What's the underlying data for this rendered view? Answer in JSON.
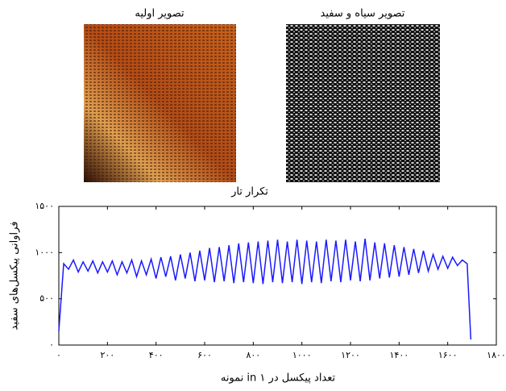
{
  "images": [
    {
      "title": "تصویر اولیه"
    },
    {
      "title": "تصویر سیاه و سفید"
    }
  ],
  "chart_data": {
    "type": "line",
    "title": "تکرار تار",
    "x_label": "تعداد پیکسل در ۱ in نمونه",
    "y_label": "فراوانی پیکسل‌های سفید",
    "xlim": [
      0,
      1800
    ],
    "xticks": [
      {
        "value": 0,
        "label": "۰"
      },
      {
        "value": 200,
        "label": "۲۰۰"
      },
      {
        "value": 400,
        "label": "۴۰۰"
      },
      {
        "value": 600,
        "label": "۶۰۰"
      },
      {
        "value": 800,
        "label": "۸۰۰"
      },
      {
        "value": 1000,
        "label": "۱۰۰۰"
      },
      {
        "value": 1200,
        "label": "۱۲۰۰"
      },
      {
        "value": 1400,
        "label": "۱۴۰۰"
      },
      {
        "value": 1600,
        "label": "۱۶۰۰"
      },
      {
        "value": 1800,
        "label": "۱۸۰۰"
      }
    ],
    "ylim": [
      0,
      1500
    ],
    "yticks": [
      {
        "value": 0,
        "label": "۰"
      },
      {
        "value": 500,
        "label": "۵۰۰"
      },
      {
        "value": 1000,
        "label": "۱۰۰۰"
      },
      {
        "value": 1500,
        "label": "۱۵۰۰"
      }
    ],
    "x": [
      0,
      20,
      40,
      60,
      80,
      100,
      120,
      140,
      160,
      180,
      200,
      220,
      240,
      260,
      280,
      300,
      320,
      340,
      360,
      380,
      400,
      420,
      440,
      460,
      480,
      500,
      520,
      540,
      560,
      580,
      600,
      620,
      640,
      660,
      680,
      700,
      720,
      740,
      760,
      780,
      800,
      820,
      840,
      860,
      880,
      900,
      920,
      940,
      960,
      980,
      1000,
      1020,
      1040,
      1060,
      1080,
      1100,
      1120,
      1140,
      1160,
      1180,
      1200,
      1220,
      1240,
      1260,
      1280,
      1300,
      1320,
      1340,
      1360,
      1380,
      1400,
      1420,
      1440,
      1460,
      1480,
      1500,
      1520,
      1540,
      1560,
      1580,
      1600,
      1620,
      1640,
      1660,
      1680,
      1695
    ],
    "series": [
      {
        "color": "#1a1aff",
        "values": [
          150,
          880,
          820,
          920,
          790,
          900,
          800,
          910,
          780,
          900,
          790,
          910,
          760,
          900,
          780,
          920,
          740,
          910,
          760,
          930,
          720,
          950,
          740,
          960,
          700,
          980,
          720,
          1000,
          690,
          1020,
          700,
          1050,
          680,
          1060,
          690,
          1080,
          670,
          1100,
          680,
          1110,
          670,
          1120,
          660,
          1130,
          680,
          1140,
          670,
          1120,
          680,
          1140,
          660,
          1130,
          680,
          1120,
          670,
          1140,
          690,
          1130,
          680,
          1140,
          700,
          1120,
          690,
          1150,
          700,
          1110,
          720,
          1100,
          730,
          1080,
          740,
          1060,
          760,
          1040,
          780,
          1020,
          800,
          980,
          820,
          960,
          830,
          950,
          860,
          920,
          880,
          60
        ]
      }
    ]
  }
}
